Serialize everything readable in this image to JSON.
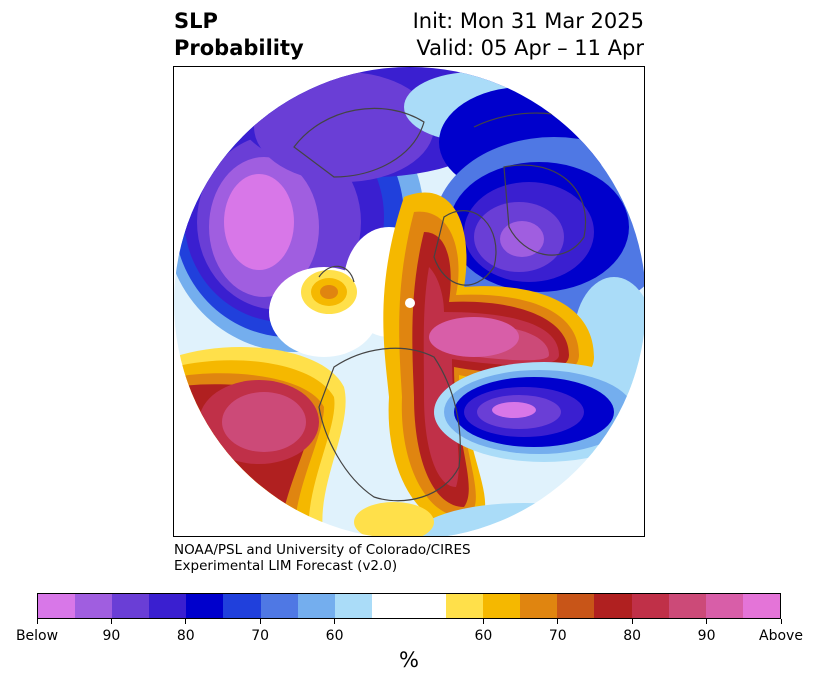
{
  "title": {
    "line1_left": "SLP",
    "line2_left": "Probability",
    "line1_right": "Init: Mon 31 Mar 2025",
    "line2_right": "Valid: 05 Apr – 11 Apr"
  },
  "credit": {
    "line1": "NOAA/PSL and University of Colorado/CIRES",
    "line2": "Experimental LIM Forecast (v2.0)"
  },
  "colorbar": {
    "units": "%",
    "below_colors": [
      "#d877e8",
      "#a05ee0",
      "#6a3ed6",
      "#3a1fd0",
      "#0000cc",
      "#2040dc",
      "#4f78e4",
      "#74aeee",
      "#aadcf8"
    ],
    "neutral_color": "#ffffff",
    "above_colors": [
      "#ffe04a",
      "#f5b800",
      "#e08510",
      "#c85518",
      "#b02020",
      "#c03048",
      "#cc4a78",
      "#d85ea8",
      "#e474d8"
    ],
    "tick_labels": [
      "Below",
      "90",
      "80",
      "70",
      "60",
      "60",
      "70",
      "80",
      "90",
      "Above"
    ]
  }
}
